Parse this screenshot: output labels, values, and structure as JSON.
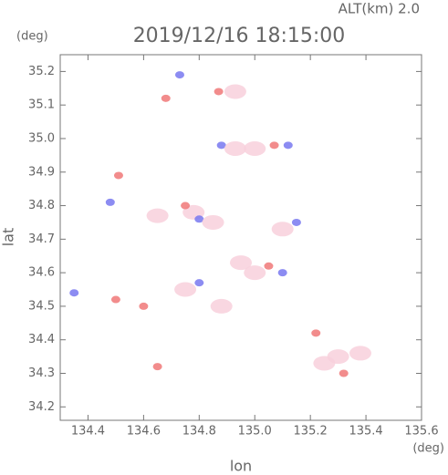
{
  "chart_data": {
    "type": "scatter",
    "title": "2019/12/16 18:15:00",
    "subtitle": "ALT(km) 2.0",
    "y_unit": "(deg)",
    "x_unit": "(deg)",
    "xlabel": "lon",
    "ylabel": "lat",
    "xlim": [
      134.3,
      135.6
    ],
    "ylim": [
      34.16,
      35.25
    ],
    "xticks": [
      134.4,
      134.6,
      134.8,
      {
        "value": 135.0,
        "label": "135.0"
      },
      135.2,
      135.4,
      135.6
    ],
    "yticks": [
      34.2,
      34.3,
      34.4,
      34.5,
      34.6,
      34.7,
      34.8,
      34.9,
      {
        "value": 35.0,
        "label": "35.0"
      },
      35.1,
      35.2
    ],
    "x": [
      134.73,
      134.87,
      134.68,
      134.93,
      134.88,
      134.93,
      135.07,
      135.12,
      135.0,
      134.51,
      134.48,
      134.78,
      134.8,
      134.75,
      134.65,
      134.85,
      135.1,
      135.15,
      134.95,
      135.05,
      135.1,
      134.8,
      134.75,
      134.88,
      134.6,
      135.0,
      134.35,
      134.5,
      135.3,
      135.25,
      135.32,
      135.22,
      135.38,
      134.65
    ],
    "y": [
      35.19,
      35.14,
      35.12,
      35.14,
      34.98,
      34.97,
      34.98,
      34.98,
      34.97,
      34.89,
      34.81,
      34.78,
      34.76,
      34.8,
      34.77,
      34.75,
      34.73,
      34.75,
      34.63,
      34.62,
      34.6,
      34.57,
      34.55,
      34.5,
      34.5,
      34.6,
      34.54,
      34.52,
      34.35,
      34.33,
      34.3,
      34.42,
      34.36,
      34.32
    ],
    "point_colors": [
      "#7878f0",
      "#f07878",
      "#f07878",
      "#f8d0dc",
      "#7878f0",
      "#f8d0dc",
      "#f07878",
      "#7878f0",
      "#f8d0dc",
      "#f07878",
      "#7878f0",
      "#f8d0dc",
      "#7878f0",
      "#f07878",
      "#f8d0dc",
      "#f8d0dc",
      "#f8d0dc",
      "#7878f0",
      "#f8d0dc",
      "#f07878",
      "#7878f0",
      "#7878f0",
      "#f8d0dc",
      "#f8d0dc",
      "#f07878",
      "#f8d0dc",
      "#7878f0",
      "#f07878",
      "#f8d0dc",
      "#f8d0dc",
      "#f07878",
      "#f07878",
      "#f8d0dc",
      "#f07878"
    ]
  }
}
